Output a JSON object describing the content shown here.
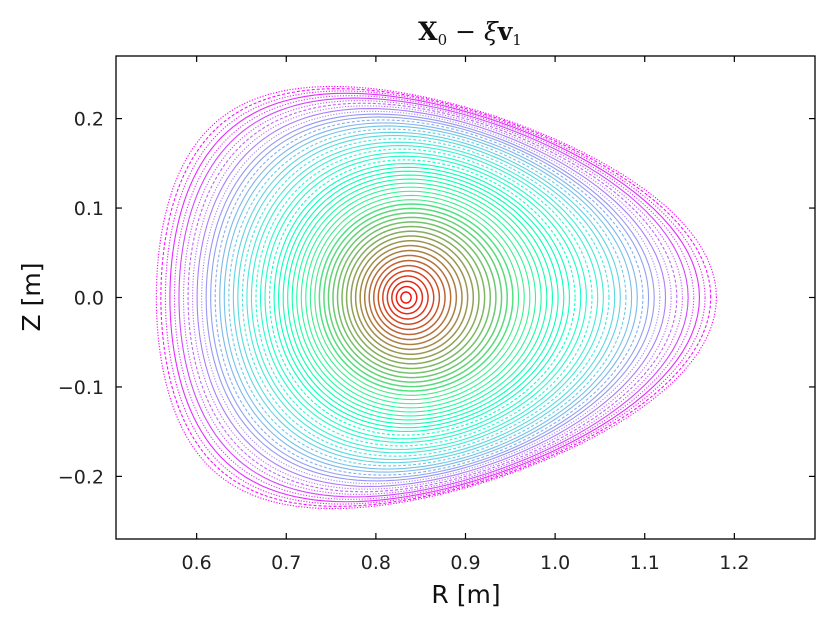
{
  "chart_data": {
    "type": "contour",
    "title_parts": {
      "x": "X",
      "x_sub": "0",
      "mid": " − ",
      "xi": "ξ",
      "v": "v",
      "v_sub": "1"
    },
    "xlabel": "R [m]",
    "ylabel": "Z [m]",
    "xlim": [
      0.51,
      1.29
    ],
    "ylim": [
      -0.27,
      0.27
    ],
    "xticks": [
      0.6,
      0.7,
      0.8,
      0.9,
      1.0,
      1.1,
      1.2
    ],
    "xtick_labels": [
      "0.6",
      "0.7",
      "0.8",
      "0.9",
      "1.0",
      "1.1",
      "1.2"
    ],
    "yticks": [
      -0.2,
      -0.1,
      0.0,
      0.1,
      0.2
    ],
    "ytick_labels": [
      "−0.2",
      "−0.1",
      "0.0",
      "0.1",
      "0.2"
    ],
    "grid": false,
    "colormap": "rainbow",
    "magnetic_axis": {
      "R": 0.833,
      "Z": 0.0
    },
    "outer_boundary": {
      "R_min": 0.555,
      "R_max": 1.18,
      "Z_min": -0.236,
      "Z_max": 0.236,
      "R_at_Z_extremum": 0.81,
      "triangularity": 0.38
    },
    "num_surfaces": 55
  }
}
